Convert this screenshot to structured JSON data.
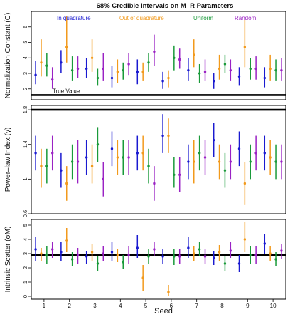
{
  "chart_data": {
    "type": "scatter",
    "title": "68% Credible Intervals on M–R Parameters",
    "xlabel": "Seed",
    "x_ticks": [
      "1",
      "2",
      "3",
      "4",
      "5",
      "6",
      "7",
      "8",
      "9",
      "10"
    ],
    "legend": {
      "placement": "top",
      "entries": [
        {
          "name": "In quadrature",
          "color": "#1a1ad0"
        },
        {
          "name": "Out of quadrature",
          "color": "#f29a1c"
        },
        {
          "name": "Uniform",
          "color": "#1a9a3a"
        },
        {
          "name": "Random",
          "color": "#9a22c4"
        }
      ]
    },
    "panels": [
      {
        "ylabel": "Normalization Constant (C)",
        "ylim": [
          1.3,
          7.0
        ],
        "yticks": [
          2,
          3,
          4,
          5,
          6
        ],
        "true_value": 1.6,
        "true_value_label": "True Value",
        "series": [
          {
            "name": "In quadrature",
            "points": [
              [
                2.9,
                2.3,
                3.8
              ],
              [
                3.7,
                3.0,
                4.5
              ],
              [
                3.3,
                2.7,
                4.0
              ],
              [
                2.7,
                2.1,
                3.5
              ],
              [
                3.1,
                2.3,
                3.9
              ],
              [
                2.5,
                2.0,
                3.1
              ],
              [
                3.2,
                2.5,
                4.0
              ],
              [
                2.5,
                2.0,
                3.0
              ],
              [
                2.8,
                2.2,
                3.4
              ],
              [
                2.7,
                2.1,
                3.4
              ]
            ]
          },
          {
            "name": "Out of quadrature",
            "points": [
              [
                3.7,
                2.8,
                5.2
              ],
              [
                4.7,
                3.7,
                6.7
              ],
              [
                4.0,
                3.1,
                5.2
              ],
              [
                3.1,
                2.4,
                3.9
              ],
              [
                3.1,
                2.5,
                3.7
              ],
              [
                2.7,
                2.1,
                3.2
              ],
              [
                4.2,
                3.4,
                5.2
              ],
              [
                3.3,
                2.6,
                4.2
              ],
              [
                4.7,
                3.4,
                6.5
              ],
              [
                3.3,
                2.5,
                4.2
              ]
            ]
          },
          {
            "name": "Uniform",
            "points": [
              [
                3.5,
                2.8,
                4.3
              ],
              [
                3.2,
                2.5,
                4.1
              ],
              [
                2.7,
                2.2,
                3.3
              ],
              [
                3.2,
                2.6,
                3.7
              ],
              [
                3.7,
                3.1,
                4.3
              ],
              [
                4.0,
                3.2,
                4.8
              ],
              [
                3.0,
                2.4,
                3.6
              ],
              [
                3.6,
                3.0,
                4.2
              ],
              [
                3.3,
                2.6,
                4.0
              ],
              [
                3.2,
                2.5,
                3.9
              ]
            ]
          },
          {
            "name": "Random",
            "points": [
              [
                2.6,
                2.0,
                3.4
              ],
              [
                3.3,
                2.7,
                4.1
              ],
              [
                3.3,
                2.5,
                4.3
              ],
              [
                3.6,
                2.9,
                4.3
              ],
              [
                4.4,
                3.5,
                5.5
              ],
              [
                3.9,
                3.3,
                4.6
              ],
              [
                3.1,
                2.5,
                3.9
              ],
              [
                3.2,
                2.5,
                3.9
              ],
              [
                3.3,
                2.6,
                4.1
              ],
              [
                3.2,
                2.5,
                4.0
              ]
            ]
          }
        ]
      },
      {
        "ylabel": "Power–law Index (γ)",
        "ylim": [
          0.6,
          1.85
        ],
        "yticks": [
          0.6,
          1.0,
          1.4,
          1.8
        ],
        "true_value": 1.8,
        "true_value_label": "",
        "series": [
          {
            "name": "In quadrature",
            "points": [
              [
                1.3,
                1.1,
                1.5
              ],
              [
                1.1,
                0.9,
                1.3
              ],
              [
                1.25,
                1.05,
                1.45
              ],
              [
                1.35,
                1.15,
                1.55
              ],
              [
                1.3,
                1.1,
                1.5
              ],
              [
                1.5,
                1.3,
                1.75
              ],
              [
                1.2,
                1.0,
                1.4
              ],
              [
                1.45,
                1.25,
                1.65
              ],
              [
                1.35,
                1.15,
                1.55
              ],
              [
                1.3,
                1.1,
                1.5
              ]
            ]
          },
          {
            "name": "Out of quadrature",
            "points": [
              [
                1.15,
                0.9,
                1.35
              ],
              [
                0.95,
                0.75,
                1.15
              ],
              [
                1.15,
                0.95,
                1.4
              ],
              [
                1.25,
                1.05,
                1.45
              ],
              [
                1.3,
                1.1,
                1.5
              ],
              [
                1.5,
                1.3,
                1.7
              ],
              [
                1.2,
                0.95,
                1.45
              ],
              [
                1.2,
                1.0,
                1.4
              ],
              [
                0.95,
                0.7,
                1.2
              ],
              [
                1.25,
                1.05,
                1.45
              ]
            ]
          },
          {
            "name": "Uniform",
            "points": [
              [
                1.15,
                0.95,
                1.35
              ],
              [
                1.2,
                1.0,
                1.4
              ],
              [
                1.4,
                1.2,
                1.6
              ],
              [
                1.25,
                1.05,
                1.45
              ],
              [
                1.15,
                0.95,
                1.35
              ],
              [
                1.05,
                0.9,
                1.25
              ],
              [
                1.3,
                1.1,
                1.5
              ],
              [
                1.1,
                0.9,
                1.3
              ],
              [
                1.2,
                1.0,
                1.4
              ],
              [
                1.2,
                1.0,
                1.4
              ]
            ]
          },
          {
            "name": "Random",
            "points": [
              [
                1.3,
                1.1,
                1.5
              ],
              [
                1.2,
                0.95,
                1.45
              ],
              [
                1.0,
                0.8,
                1.2
              ],
              [
                1.25,
                1.05,
                1.45
              ],
              [
                0.95,
                0.75,
                1.15
              ],
              [
                1.05,
                0.85,
                1.25
              ],
              [
                1.25,
                1.05,
                1.45
              ],
              [
                1.2,
                1.0,
                1.4
              ],
              [
                1.3,
                1.1,
                1.5
              ],
              [
                1.2,
                1.0,
                1.4
              ]
            ]
          }
        ]
      },
      {
        "ylabel": "Intrinsic Scatter (σM)",
        "ylim": [
          -0.2,
          5.4
        ],
        "yticks": [
          0,
          1,
          2,
          3,
          4,
          5
        ],
        "true_value": 2.9,
        "true_value_label": "",
        "series": [
          {
            "name": "In quadrature",
            "points": [
              [
                3.3,
                2.5,
                4.2
              ],
              [
                3.1,
                2.5,
                3.8
              ],
              [
                2.8,
                2.3,
                3.2
              ],
              [
                3.1,
                2.5,
                3.8
              ],
              [
                3.4,
                2.7,
                4.3
              ],
              [
                2.8,
                2.3,
                3.3
              ],
              [
                3.4,
                2.7,
                4.2
              ],
              [
                2.7,
                2.2,
                3.2
              ],
              [
                2.3,
                1.7,
                2.9
              ],
              [
                3.7,
                3.0,
                4.4
              ]
            ]
          },
          {
            "name": "Out of quadrature",
            "points": [
              [
                3.0,
                2.5,
                3.4
              ],
              [
                3.9,
                3.1,
                4.8
              ],
              [
                3.1,
                2.5,
                3.7
              ],
              [
                2.9,
                2.4,
                3.3
              ],
              [
                1.3,
                0.4,
                2.2
              ],
              [
                0.3,
                0.0,
                0.8
              ],
              [
                3.0,
                2.5,
                3.5
              ],
              [
                3.1,
                2.5,
                3.6
              ],
              [
                4.0,
                3.1,
                5.2
              ],
              [
                3.0,
                2.5,
                3.5
              ]
            ]
          },
          {
            "name": "Uniform",
            "points": [
              [
                2.9,
                2.3,
                3.5
              ],
              [
                2.6,
                2.1,
                3.1
              ],
              [
                2.3,
                1.8,
                2.8
              ],
              [
                2.4,
                1.9,
                2.9
              ],
              [
                2.8,
                2.3,
                3.3
              ],
              [
                2.8,
                2.2,
                3.3
              ],
              [
                3.3,
                2.8,
                3.8
              ],
              [
                2.3,
                1.8,
                2.8
              ],
              [
                2.9,
                2.3,
                3.5
              ],
              [
                2.6,
                2.1,
                3.1
              ]
            ]
          },
          {
            "name": "Random",
            "points": [
              [
                3.3,
                2.7,
                3.8
              ],
              [
                2.9,
                2.3,
                3.4
              ],
              [
                3.0,
                2.5,
                3.5
              ],
              [
                2.9,
                2.3,
                3.5
              ],
              [
                3.3,
                2.8,
                3.8
              ],
              [
                2.8,
                2.3,
                3.3
              ],
              [
                2.8,
                2.3,
                3.3
              ],
              [
                3.2,
                2.7,
                3.8
              ],
              [
                2.9,
                2.3,
                3.5
              ],
              [
                3.2,
                2.6,
                3.7
              ]
            ]
          }
        ]
      }
    ]
  }
}
